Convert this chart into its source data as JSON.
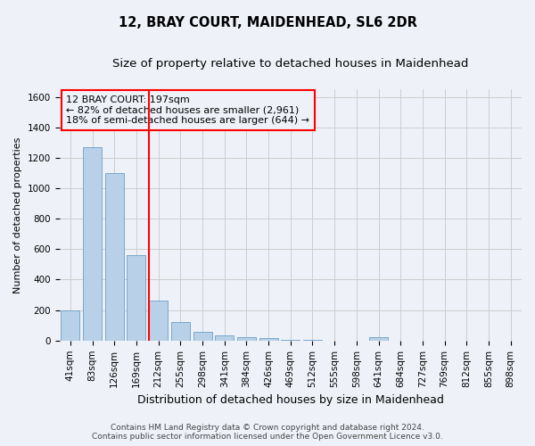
{
  "title": "12, BRAY COURT, MAIDENHEAD, SL6 2DR",
  "subtitle": "Size of property relative to detached houses in Maidenhead",
  "xlabel": "Distribution of detached houses by size in Maidenhead",
  "ylabel": "Number of detached properties",
  "categories": [
    "41sqm",
    "83sqm",
    "126sqm",
    "169sqm",
    "212sqm",
    "255sqm",
    "298sqm",
    "341sqm",
    "384sqm",
    "426sqm",
    "469sqm",
    "512sqm",
    "555sqm",
    "598sqm",
    "641sqm",
    "684sqm",
    "727sqm",
    "769sqm",
    "812sqm",
    "855sqm",
    "898sqm"
  ],
  "values": [
    200,
    1270,
    1100,
    560,
    265,
    120,
    60,
    35,
    20,
    15,
    5,
    5,
    0,
    0,
    25,
    0,
    0,
    0,
    0,
    0,
    0
  ],
  "bar_color": "#b8d0e8",
  "bar_edge_color": "#6a9fc8",
  "grid_color": "#cccccc",
  "annotation_line1": "12 BRAY COURT: 197sqm",
  "annotation_line2": "← 82% of detached houses are smaller (2,961)",
  "annotation_line3": "18% of semi-detached houses are larger (644) →",
  "red_line_x": 3.57,
  "ylim": [
    0,
    1650
  ],
  "yticks": [
    0,
    200,
    400,
    600,
    800,
    1000,
    1200,
    1400,
    1600
  ],
  "footer_line1": "Contains HM Land Registry data © Crown copyright and database right 2024.",
  "footer_line2": "Contains public sector information licensed under the Open Government Licence v3.0.",
  "background_color": "#eef2f8",
  "title_fontsize": 10.5,
  "subtitle_fontsize": 9.5,
  "annotation_fontsize": 8.0,
  "tick_fontsize": 7.5,
  "ylabel_fontsize": 8,
  "xlabel_fontsize": 9
}
